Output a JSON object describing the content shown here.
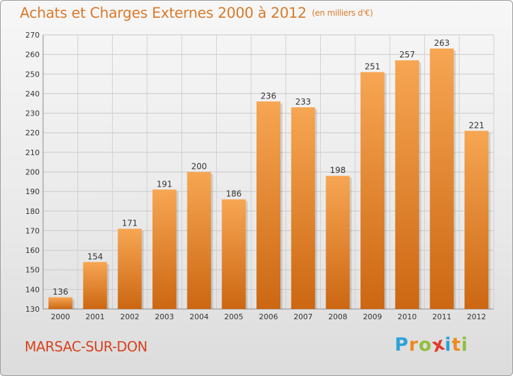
{
  "title": "Achats et Charges Externes 2000 à 2012",
  "subtitle": "(en milliers d'€)",
  "commune": "MARSAC-SUR-DON",
  "logo": {
    "letters": [
      "P",
      "r",
      "o",
      "x",
      "i",
      "t",
      "i"
    ],
    "colors": [
      "#2aa3d8",
      "#f08a1d",
      "#8fc03c",
      "#e23a2a",
      "#2aa3d8",
      "#f08a1d",
      "#8fc03c"
    ]
  },
  "colors": {
    "bar_top": "#f7a653",
    "bar_bottom": "#cc6712",
    "title": "#d97a2b",
    "commune": "#d9401f"
  },
  "chart_data": {
    "type": "bar",
    "categories": [
      "2000",
      "2001",
      "2002",
      "2003",
      "2004",
      "2005",
      "2006",
      "2007",
      "2008",
      "2009",
      "2010",
      "2011",
      "2012"
    ],
    "values": [
      136,
      154,
      171,
      191,
      200,
      186,
      236,
      233,
      198,
      251,
      257,
      263,
      221
    ],
    "ylim": [
      130,
      270
    ],
    "yticks": [
      130,
      140,
      150,
      160,
      170,
      180,
      190,
      200,
      210,
      220,
      230,
      240,
      250,
      260,
      270
    ],
    "grid": true,
    "data_labels": true
  }
}
